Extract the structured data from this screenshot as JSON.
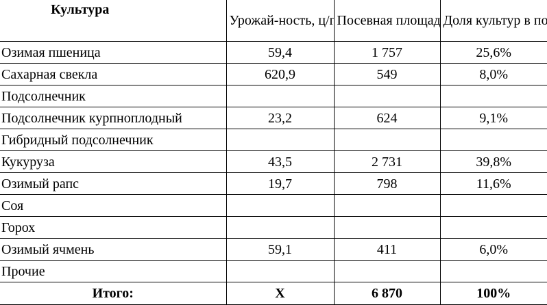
{
  "headers": {
    "culture": "Культура",
    "yield": "Урожай-ность, ц/га",
    "area": "Посевная площадь, га",
    "share": "Доля культур в посевах, %"
  },
  "rows": [
    {
      "name": "Озимая пшеница",
      "yield": "59,4",
      "area": "1 757",
      "share": "25,6%"
    },
    {
      "name": "Сахарная свекла",
      "yield": "620,9",
      "area": "549",
      "share": "8,0%"
    },
    {
      "name": "Подсолнечник",
      "yield": "",
      "area": "",
      "share": ""
    },
    {
      "name": "Подсолнечник курпноплодный",
      "yield": "23,2",
      "area": "624",
      "share": "9,1%"
    },
    {
      "name": "Гибридный подсолнечник",
      "yield": "",
      "area": "",
      "share": ""
    },
    {
      "name": "Кукуруза",
      "yield": "43,5",
      "area": "2 731",
      "share": "39,8%"
    },
    {
      "name": "Озимый рапс",
      "yield": "19,7",
      "area": "798",
      "share": "11,6%"
    },
    {
      "name": "Соя",
      "yield": "",
      "area": "",
      "share": ""
    },
    {
      "name": "Горох",
      "yield": "",
      "area": "",
      "share": ""
    },
    {
      "name": "Озимый ячмень",
      "yield": "59,1",
      "area": "411",
      "share": "6,0%"
    },
    {
      "name": "Прочие",
      "yield": "",
      "area": "",
      "share": ""
    }
  ],
  "total": {
    "label": "Итого:",
    "yield": "Х",
    "area": "6 870",
    "share": "100%"
  }
}
